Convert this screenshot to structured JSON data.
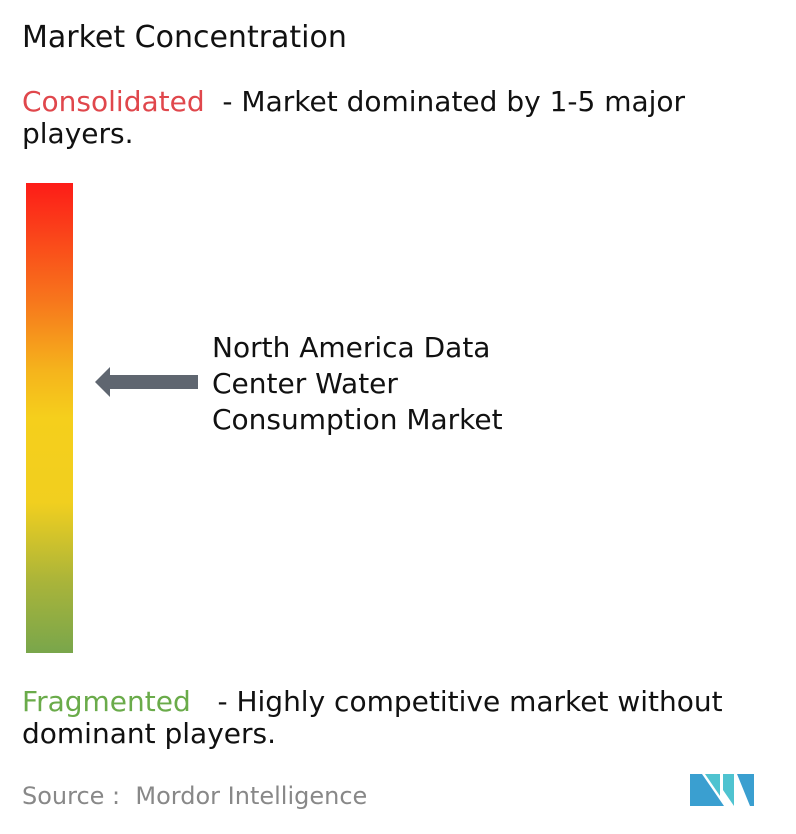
{
  "title": "Market Concentration",
  "consolidated": {
    "label": "Consolidated",
    "description": "  - Market dominated by 1-5 major players."
  },
  "fragmented": {
    "label": "Fragmented",
    "description": "   - Highly competitive market without dominant players."
  },
  "market_label": [
    "North America Data",
    "Center Water",
    "Consumption Market"
  ],
  "source": "Source :  Mordor Intelligence",
  "colors": {
    "consolidated": "#e0474c",
    "fragmented": "#6aab4a",
    "arrow": "#5f6670",
    "logo": "#3a9fd0"
  },
  "logo_text": "Mordor Intelligence"
}
